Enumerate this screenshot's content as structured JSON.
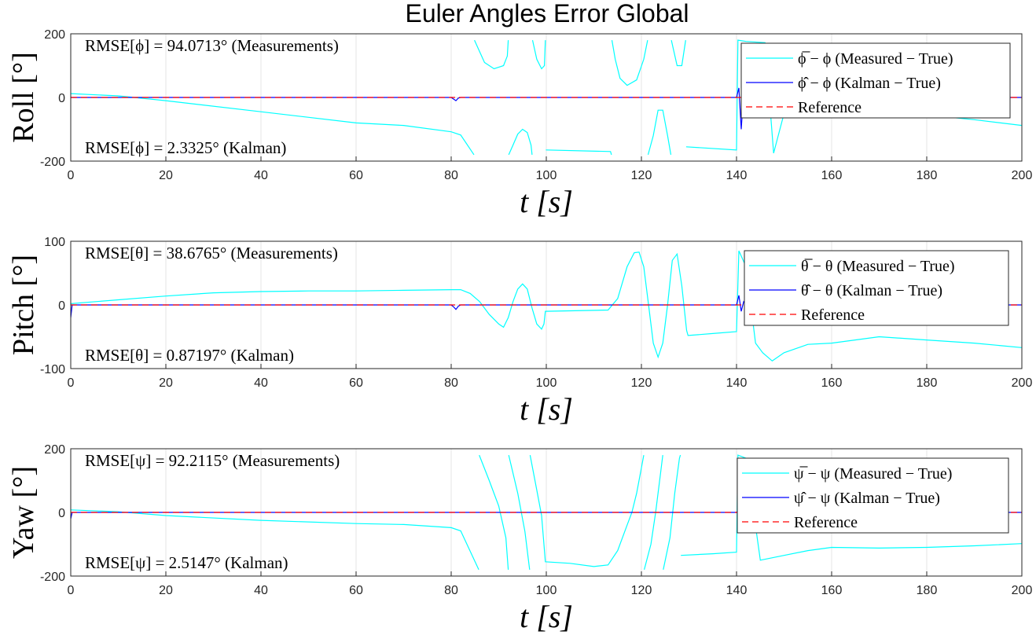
{
  "figure_title": "Euler Angles Error Global",
  "colors": {
    "measured": "#00ffff",
    "kalman": "#0000ff",
    "reference": "#ff0000"
  },
  "chart_data": [
    {
      "type": "line",
      "ylabel": "Roll [°]",
      "xlabel": "t [s]",
      "xlim": [
        0,
        200
      ],
      "ylim": [
        -200,
        200
      ],
      "xticks": [
        "0",
        "20",
        "40",
        "60",
        "80",
        "100",
        "120",
        "140",
        "160",
        "180",
        "200"
      ],
      "yticks": [
        "-200",
        "0",
        "200"
      ],
      "grid": true,
      "legend_position": "top-right",
      "annotations": [
        "RMSE[ϕ] = 94.0713° (Measurements)",
        "RMSE[ϕ] = 2.3325° (Kalman)"
      ],
      "series": [
        {
          "name": "ϕ̅ − ϕ (Measured − True)",
          "color": "#00ffff",
          "points": [
            [
              0,
              12
            ],
            [
              10,
              5
            ],
            [
              20,
              -10
            ],
            [
              40,
              -45
            ],
            [
              60,
              -80
            ],
            [
              70,
              -88
            ],
            [
              80,
              -108
            ],
            [
              82,
              -118
            ],
            [
              84.8,
              -180
            ],
            [
              84.9,
              180
            ],
            [
              87,
              110
            ],
            [
              89,
              90
            ],
            [
              91,
              100
            ],
            [
              91.8,
              130
            ],
            [
              92,
              180
            ],
            [
              92.1,
              -180
            ],
            [
              93,
              -150
            ],
            [
              94,
              -115
            ],
            [
              95,
              -100
            ],
            [
              96,
              -110
            ],
            [
              96.8,
              -150
            ],
            [
              97,
              -180
            ],
            [
              97.1,
              180
            ],
            [
              98,
              120
            ],
            [
              99,
              90
            ],
            [
              99.6,
              100
            ],
            [
              99.8,
              180
            ],
            [
              99.9,
              -165
            ],
            [
              113.5,
              -170
            ],
            [
              113.7,
              -180
            ],
            [
              113.8,
              180
            ],
            [
              114.5,
              120
            ],
            [
              115.5,
              60
            ],
            [
              117,
              38
            ],
            [
              119,
              55
            ],
            [
              120.5,
              120
            ],
            [
              121.3,
              180
            ],
            [
              121.4,
              -180
            ],
            [
              122.5,
              -120
            ],
            [
              123.5,
              -40
            ],
            [
              124.5,
              -40
            ],
            [
              125.5,
              -120
            ],
            [
              126.2,
              -180
            ],
            [
              126.3,
              180
            ],
            [
              127.5,
              100
            ],
            [
              128.5,
              100
            ],
            [
              129.3,
              180
            ],
            [
              129.4,
              -155
            ],
            [
              140,
              -165
            ],
            [
              140.3,
              180
            ],
            [
              142,
              176
            ],
            [
              146,
              172
            ],
            [
              147.8,
              -175
            ],
            [
              150,
              -50
            ],
            [
              155,
              -35
            ],
            [
              160,
              -30
            ],
            [
              170,
              -40
            ],
            [
              180,
              -55
            ],
            [
              190,
              -70
            ],
            [
              200,
              -88
            ]
          ]
        },
        {
          "name": "ϕ̂ − ϕ (Kalman − True)",
          "color": "#0000ff",
          "points": [
            [
              0,
              0
            ],
            [
              20,
              0
            ],
            [
              40,
              0
            ],
            [
              60,
              0
            ],
            [
              80,
              0
            ],
            [
              80.5,
              -5
            ],
            [
              81,
              -10
            ],
            [
              81.5,
              -2
            ],
            [
              82,
              0
            ],
            [
              100,
              0
            ],
            [
              120,
              0
            ],
            [
              140,
              0
            ],
            [
              140.5,
              30
            ],
            [
              141,
              -100
            ],
            [
              141.5,
              20
            ],
            [
              142,
              0
            ],
            [
              160,
              0
            ],
            [
              180,
              0
            ],
            [
              200,
              0
            ]
          ]
        },
        {
          "name": "Reference",
          "color": "#ff0000",
          "dashed": true,
          "points": [
            [
              0,
              0
            ],
            [
              200,
              0
            ]
          ]
        }
      ]
    },
    {
      "type": "line",
      "ylabel": "Pitch [°]",
      "xlabel": "t [s]",
      "xlim": [
        0,
        200
      ],
      "ylim": [
        -100,
        100
      ],
      "xticks": [
        "0",
        "20",
        "40",
        "60",
        "80",
        "100",
        "120",
        "140",
        "160",
        "180",
        "200"
      ],
      "yticks": [
        "-100",
        "0",
        "100"
      ],
      "grid": true,
      "legend_position": "top-right",
      "annotations": [
        "RMSE[θ] = 38.6765° (Measurements)",
        "RMSE[θ] = 0.87197° (Kalman)"
      ],
      "series": [
        {
          "name": "θ̅ − θ (Measured − True)",
          "color": "#00ffff",
          "points": [
            [
              0,
              2
            ],
            [
              10,
              8
            ],
            [
              20,
              14
            ],
            [
              30,
              19
            ],
            [
              40,
              21
            ],
            [
              50,
              22
            ],
            [
              60,
              22
            ],
            [
              70,
              23
            ],
            [
              80,
              24
            ],
            [
              82,
              24
            ],
            [
              84,
              18
            ],
            [
              86,
              5
            ],
            [
              88,
              -15
            ],
            [
              90,
              -30
            ],
            [
              91,
              -35
            ],
            [
              92,
              -20
            ],
            [
              93,
              5
            ],
            [
              94,
              25
            ],
            [
              95,
              33
            ],
            [
              96,
              25
            ],
            [
              97,
              -5
            ],
            [
              98,
              -30
            ],
            [
              99,
              -38
            ],
            [
              99.5,
              -30
            ],
            [
              99.8,
              -10
            ],
            [
              113,
              -8
            ],
            [
              115,
              10
            ],
            [
              117,
              60
            ],
            [
              118.5,
              82
            ],
            [
              119.5,
              83
            ],
            [
              120.5,
              60
            ],
            [
              121.5,
              0
            ],
            [
              122.5,
              -60
            ],
            [
              123.5,
              -82
            ],
            [
              124.5,
              -60
            ],
            [
              125.5,
              0
            ],
            [
              126.5,
              70
            ],
            [
              127.5,
              80
            ],
            [
              128.5,
              30
            ],
            [
              129.5,
              -40
            ],
            [
              129.8,
              -48
            ],
            [
              135,
              -45
            ],
            [
              140,
              -42
            ],
            [
              140.5,
              85
            ],
            [
              142,
              60
            ],
            [
              144,
              -60
            ],
            [
              145.5,
              -75
            ],
            [
              147.5,
              -88
            ],
            [
              150,
              -75
            ],
            [
              155,
              -62
            ],
            [
              160,
              -60
            ],
            [
              170,
              -50
            ],
            [
              180,
              -55
            ],
            [
              190,
              -60
            ],
            [
              200,
              -67
            ]
          ]
        },
        {
          "name": "θ̂ − θ (Kalman − True)",
          "color": "#0000ff",
          "points": [
            [
              0,
              -20
            ],
            [
              0.3,
              0
            ],
            [
              20,
              0
            ],
            [
              40,
              0
            ],
            [
              60,
              0
            ],
            [
              80,
              0
            ],
            [
              80.5,
              -3
            ],
            [
              81,
              -7
            ],
            [
              81.5,
              -2
            ],
            [
              82,
              0
            ],
            [
              100,
              0
            ],
            [
              120,
              0
            ],
            [
              140,
              0
            ],
            [
              140.5,
              15
            ],
            [
              141,
              -10
            ],
            [
              141.5,
              5
            ],
            [
              142,
              0
            ],
            [
              160,
              0
            ],
            [
              180,
              0
            ],
            [
              200,
              0
            ]
          ]
        },
        {
          "name": "Reference",
          "color": "#ff0000",
          "dashed": true,
          "points": [
            [
              0,
              0
            ],
            [
              200,
              0
            ]
          ]
        }
      ]
    },
    {
      "type": "line",
      "ylabel": "Yaw [°]",
      "xlabel": "t [s]",
      "xlim": [
        0,
        200
      ],
      "ylim": [
        -200,
        200
      ],
      "xticks": [
        "0",
        "20",
        "40",
        "60",
        "80",
        "100",
        "120",
        "140",
        "160",
        "180",
        "200"
      ],
      "yticks": [
        "-200",
        "0",
        "200"
      ],
      "grid": true,
      "legend_position": "top-right",
      "annotations": [
        "RMSE[ψ] = 92.2115° (Measurements)",
        "RMSE[ψ] = 2.5147° (Kalman)"
      ],
      "series": [
        {
          "name": "ψ̅ − ψ (Measured − True)",
          "color": "#00ffff",
          "points": [
            [
              0,
              8
            ],
            [
              10,
              2
            ],
            [
              20,
              -10
            ],
            [
              40,
              -25
            ],
            [
              60,
              -35
            ],
            [
              70,
              -38
            ],
            [
              80,
              -48
            ],
            [
              82,
              -58
            ],
            [
              85.8,
              -180
            ],
            [
              85.9,
              180
            ],
            [
              88,
              100
            ],
            [
              90,
              20
            ],
            [
              91.5,
              -80
            ],
            [
              92,
              -180
            ],
            [
              92.1,
              180
            ],
            [
              94,
              60
            ],
            [
              95.5,
              -60
            ],
            [
              96.5,
              -180
            ],
            [
              96.6,
              180
            ],
            [
              98,
              70
            ],
            [
              99,
              -10
            ],
            [
              99.8,
              -155
            ],
            [
              105,
              -160
            ],
            [
              110,
              -170
            ],
            [
              113,
              -165
            ],
            [
              115,
              -120
            ],
            [
              117,
              -40
            ],
            [
              118,
              0
            ],
            [
              119,
              60
            ],
            [
              120,
              140
            ],
            [
              120.5,
              180
            ],
            [
              120.6,
              -180
            ],
            [
              122,
              -100
            ],
            [
              123,
              0
            ],
            [
              124,
              120
            ],
            [
              124.5,
              180
            ],
            [
              124.6,
              -180
            ],
            [
              126,
              -80
            ],
            [
              127,
              60
            ],
            [
              128,
              170
            ],
            [
              128.2,
              180
            ],
            [
              128.3,
              -135
            ],
            [
              135,
              -130
            ],
            [
              140,
              -125
            ],
            [
              140.3,
              180
            ],
            [
              142,
              170
            ],
            [
              145,
              -150
            ],
            [
              150,
              -135
            ],
            [
              155,
              -120
            ],
            [
              160,
              -110
            ],
            [
              170,
              -112
            ],
            [
              180,
              -110
            ],
            [
              190,
              -105
            ],
            [
              200,
              -98
            ]
          ]
        },
        {
          "name": "ψ̂ − ψ (Kalman − True)",
          "color": "#0000ff",
          "points": [
            [
              0,
              -20
            ],
            [
              0.3,
              0
            ],
            [
              20,
              0
            ],
            [
              40,
              0
            ],
            [
              60,
              0
            ],
            [
              80,
              0
            ],
            [
              100,
              0
            ],
            [
              120,
              0
            ],
            [
              140,
              0
            ],
            [
              140.5,
              8
            ],
            [
              141,
              -5
            ],
            [
              142,
              0
            ],
            [
              160,
              0
            ],
            [
              180,
              0
            ],
            [
              200,
              0
            ]
          ]
        },
        {
          "name": "Reference",
          "color": "#ff0000",
          "dashed": true,
          "points": [
            [
              0,
              0
            ],
            [
              200,
              0
            ]
          ]
        }
      ]
    }
  ]
}
